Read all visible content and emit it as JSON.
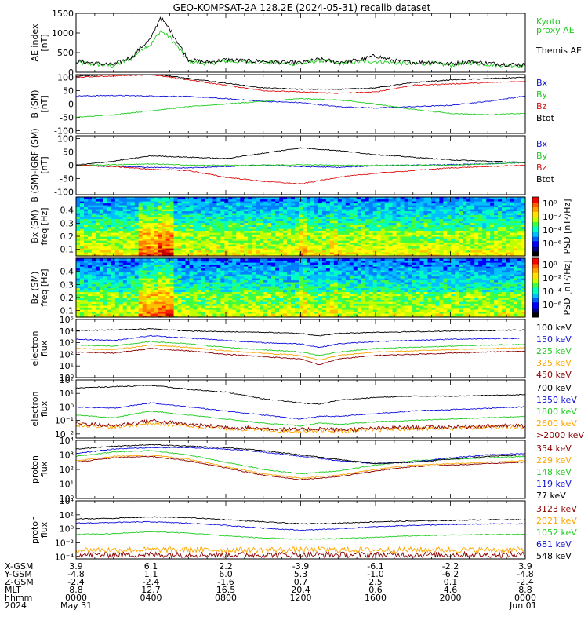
{
  "title": "GEO-KOMPSAT-2A 128.2E (2024-05-31) recalib dataset",
  "colors": {
    "black": "#000000",
    "green": "#22cc22",
    "blue": "#1010dd",
    "red": "#dd1010",
    "orange": "#ffa500",
    "darkred": "#8b0000",
    "ltgreen": "#33ee33"
  },
  "chart_data": [
    {
      "type": "line",
      "panel": "ae",
      "ylabel": [
        "AE index",
        "[nT]"
      ],
      "ylim": [
        0,
        1500
      ],
      "yticks": [
        "0",
        "500",
        "1000",
        "1500"
      ],
      "x_hours": [
        0,
        1,
        2,
        3,
        3.5,
        4,
        4.5,
        5,
        6,
        7,
        8,
        9,
        10,
        11,
        12,
        13,
        14,
        15,
        16,
        17,
        18,
        19,
        20,
        21,
        22,
        23,
        24
      ],
      "series": [
        {
          "name": "Kyoto proxy AE",
          "label": [
            "Kyoto",
            "proxy AE"
          ],
          "color": "green",
          "values": [
            250,
            200,
            160,
            350,
            600,
            700,
            1050,
            900,
            280,
            220,
            280,
            260,
            250,
            230,
            210,
            300,
            220,
            260,
            280,
            240,
            210,
            230,
            180,
            240,
            200,
            180,
            170
          ]
        },
        {
          "name": "Themis AE",
          "label": [
            "Themis AE"
          ],
          "color": "black",
          "values": [
            280,
            230,
            190,
            400,
            650,
            850,
            1400,
            1100,
            320,
            250,
            320,
            290,
            280,
            250,
            240,
            330,
            260,
            300,
            420,
            290,
            250,
            260,
            210,
            270,
            230,
            200,
            190
          ]
        }
      ]
    },
    {
      "type": "line",
      "panel": "bsm",
      "ylabel": [
        "B (SM)",
        "[nT]"
      ],
      "ylim": [
        -110,
        110
      ],
      "yticks": [
        "-100",
        "-50",
        "0",
        "50",
        "100"
      ],
      "x_hours": [
        0,
        2,
        4,
        6,
        8,
        10,
        12,
        14,
        16,
        18,
        20,
        22,
        24
      ],
      "series": [
        {
          "name": "Bx",
          "color": "blue",
          "values": [
            30,
            32,
            30,
            28,
            20,
            10,
            5,
            -10,
            -15,
            -10,
            -5,
            10,
            30
          ]
        },
        {
          "name": "By",
          "color": "green",
          "values": [
            -50,
            -40,
            -25,
            -10,
            0,
            10,
            20,
            15,
            0,
            -20,
            -35,
            -40,
            -35
          ]
        },
        {
          "name": "Bz",
          "color": "red",
          "values": [
            100,
            105,
            110,
            90,
            70,
            50,
            45,
            40,
            45,
            70,
            75,
            80,
            85
          ]
        },
        {
          "name": "Btot",
          "color": "black",
          "values": [
            105,
            110,
            115,
            95,
            78,
            60,
            55,
            55,
            60,
            80,
            90,
            95,
            100
          ]
        }
      ]
    },
    {
      "type": "line",
      "panel": "bdiff",
      "ylabel": [
        "B (SM)-IGRF (SM)",
        "[nT]"
      ],
      "ylim": [
        -110,
        110
      ],
      "yticks": [
        "-100",
        "-50",
        "0",
        "50",
        "100"
      ],
      "x_hours": [
        0,
        2,
        4,
        6,
        8,
        10,
        12,
        14,
        16,
        18,
        20,
        22,
        24
      ],
      "series": [
        {
          "name": "Bx",
          "color": "blue",
          "values": [
            0,
            -5,
            -8,
            -10,
            -5,
            0,
            -5,
            -8,
            -2,
            0,
            2,
            5,
            10
          ]
        },
        {
          "name": "By",
          "color": "green",
          "values": [
            0,
            2,
            5,
            0,
            0,
            0,
            2,
            0,
            0,
            0,
            0,
            5,
            10
          ]
        },
        {
          "name": "Bz",
          "color": "red",
          "values": [
            0,
            -5,
            -15,
            -20,
            -45,
            -60,
            -70,
            -45,
            -30,
            -20,
            -10,
            -5,
            0
          ]
        },
        {
          "name": "Btot",
          "color": "black",
          "values": [
            0,
            15,
            35,
            30,
            25,
            45,
            65,
            55,
            40,
            30,
            20,
            15,
            10
          ]
        }
      ]
    },
    {
      "type": "heatmap",
      "panel": "bxspec",
      "ylabel": [
        "Bx (SM)",
        "freq [Hz]"
      ],
      "ylim": [
        0.05,
        0.5
      ],
      "yticks": [
        "0.1",
        "0.2",
        "0.3",
        "0.4"
      ],
      "colorbar": {
        "label": "PSD [nT²/Hz]",
        "ticks": [
          "10⁰",
          "10⁻²",
          "10⁻⁴",
          "10⁻⁶"
        ]
      }
    },
    {
      "type": "heatmap",
      "panel": "bzspec",
      "ylabel": [
        "Bz (SM)",
        "freq [Hz]"
      ],
      "ylim": [
        0.05,
        0.5
      ],
      "yticks": [
        "0.1",
        "0.2",
        "0.3",
        "0.4"
      ],
      "colorbar": {
        "label": "PSD [nT²/Hz]",
        "ticks": [
          "10⁰",
          "10⁻²",
          "10⁻⁴",
          "10⁻⁶"
        ]
      }
    },
    {
      "type": "line",
      "panel": "elec1",
      "ylabel": [
        "electron",
        "flux"
      ],
      "log": true,
      "ylim": [
        0,
        5
      ],
      "yticks": [
        "10⁰",
        "10¹",
        "10²",
        "10³",
        "10⁴",
        "10⁵"
      ],
      "x_hours": [
        0,
        2,
        4,
        6,
        8,
        10,
        12,
        13,
        14,
        16,
        18,
        20,
        22,
        24
      ],
      "series": [
        {
          "name": "100 keV",
          "color": "black",
          "values": [
            4.05,
            4.1,
            4.2,
            4.0,
            3.95,
            3.9,
            3.8,
            3.6,
            3.8,
            3.9,
            3.95,
            4.0,
            4.05,
            4.1
          ]
        },
        {
          "name": "150 keV",
          "color": "blue",
          "values": [
            3.3,
            3.2,
            3.6,
            3.4,
            3.2,
            3.0,
            2.9,
            2.6,
            2.9,
            3.1,
            3.2,
            3.3,
            3.35,
            3.4
          ]
        },
        {
          "name": "225 keV",
          "color": "green",
          "values": [
            2.8,
            2.7,
            3.1,
            2.9,
            2.6,
            2.4,
            2.2,
            1.9,
            2.2,
            2.5,
            2.6,
            2.7,
            2.8,
            2.85
          ]
        },
        {
          "name": "325 keV",
          "color": "orange",
          "values": [
            2.5,
            2.4,
            2.8,
            2.6,
            2.3,
            2.1,
            1.9,
            1.5,
            1.9,
            2.2,
            2.3,
            2.4,
            2.5,
            2.55
          ]
        },
        {
          "name": "450 keV",
          "color": "darkred",
          "values": [
            2.2,
            2.1,
            2.5,
            2.3,
            2.0,
            1.8,
            1.6,
            1.1,
            1.6,
            1.9,
            2.0,
            2.1,
            2.2,
            2.25
          ]
        }
      ]
    },
    {
      "type": "line",
      "panel": "elec2",
      "ylabel": [
        "electron",
        "flux"
      ],
      "log": true,
      "ylim": [
        -2.3,
        2
      ],
      "yticks": [
        "10⁻²",
        "10⁻¹",
        "10⁰",
        "10¹",
        "10²"
      ],
      "x_hours": [
        0,
        2,
        4,
        6,
        8,
        10,
        12,
        13,
        14,
        16,
        18,
        20,
        22,
        24
      ],
      "series": [
        {
          "name": "700 keV",
          "color": "black",
          "values": [
            1.4,
            1.5,
            1.6,
            1.3,
            1.1,
            0.6,
            0.3,
            0.2,
            0.5,
            0.7,
            0.8,
            0.8,
            0.85,
            0.9
          ]
        },
        {
          "name": "1350 keV",
          "color": "blue",
          "values": [
            0.0,
            -0.1,
            0.3,
            0.0,
            -0.3,
            -0.6,
            -0.9,
            -0.7,
            -0.7,
            -0.5,
            -0.3,
            -0.2,
            -0.1,
            0.0
          ]
        },
        {
          "name": "1800 keV",
          "color": "green",
          "values": [
            -0.6,
            -0.8,
            -0.3,
            -0.6,
            -0.9,
            -1.2,
            -1.4,
            -1.2,
            -1.3,
            -1.1,
            -1.0,
            -0.9,
            -0.8,
            -0.7
          ]
        },
        {
          "name": "2600 keV",
          "color": "orange",
          "values": [
            -1.3,
            -1.5,
            -1.2,
            -1.4,
            -1.6,
            -1.7,
            -1.8,
            -1.7,
            -1.8,
            -1.7,
            -1.6,
            -1.6,
            -1.5,
            -1.5
          ]
        },
        {
          "name": ">2000 keV",
          "color": "darkred",
          "values": [
            -1.2,
            -1.4,
            -1.0,
            -1.3,
            -1.5,
            -1.6,
            -1.7,
            -1.6,
            -1.7,
            -1.6,
            -1.5,
            -1.5,
            -1.4,
            -1.4
          ]
        }
      ]
    },
    {
      "type": "line",
      "panel": "prot1",
      "ylabel": [
        "proton",
        "flux"
      ],
      "log": true,
      "ylim": [
        0,
        4
      ],
      "yticks": [
        "10⁰",
        "10¹",
        "10²",
        "10³",
        "10⁴"
      ],
      "x_hours": [
        0,
        2,
        4,
        6,
        8,
        10,
        12,
        14,
        16,
        18,
        20,
        22,
        24
      ],
      "series": [
        {
          "name": "354 keV",
          "color": "darkred",
          "values": [
            2.5,
            2.8,
            2.9,
            2.6,
            2.1,
            1.6,
            1.3,
            1.5,
            1.9,
            2.2,
            2.3,
            2.4,
            2.5
          ]
        },
        {
          "name": "229 keV",
          "color": "orange",
          "values": [
            2.6,
            2.9,
            3.0,
            2.7,
            2.2,
            1.7,
            1.4,
            1.6,
            2.0,
            2.3,
            2.4,
            2.5,
            2.6
          ]
        },
        {
          "name": "148 keV",
          "color": "green",
          "values": [
            2.9,
            3.2,
            3.3,
            3.0,
            2.5,
            2.0,
            1.7,
            1.9,
            2.3,
            2.6,
            2.7,
            2.8,
            2.9
          ]
        },
        {
          "name": "119 keV",
          "color": "blue",
          "values": [
            3.1,
            3.4,
            3.5,
            3.5,
            3.4,
            3.2,
            2.9,
            2.6,
            2.4,
            2.5,
            2.8,
            3.0,
            3.1
          ]
        },
        {
          "name": "77 keV",
          "color": "black",
          "values": [
            3.4,
            3.6,
            3.7,
            3.6,
            3.5,
            3.3,
            3.0,
            2.7,
            2.4,
            2.5,
            2.7,
            2.9,
            3.0
          ]
        }
      ]
    },
    {
      "type": "line",
      "panel": "prot2",
      "ylabel": [
        "proton",
        "flux"
      ],
      "log": true,
      "ylim": [
        -4.3,
        4
      ],
      "yticks": [
        "10⁻⁴",
        "10⁻²",
        "10⁰",
        "10²",
        "10⁴"
      ],
      "x_hours": [
        0,
        2,
        4,
        6,
        8,
        10,
        12,
        14,
        16,
        18,
        20,
        22,
        24
      ],
      "series": [
        {
          "name": "3123 keV",
          "color": "darkred",
          "values": [
            -3.7,
            -3.7,
            -3.7,
            -3.7,
            -3.7,
            -3.7,
            -3.7,
            -3.7,
            -3.7,
            -3.7,
            -3.7,
            -3.7,
            -3.7
          ]
        },
        {
          "name": "2021 keV",
          "color": "orange",
          "values": [
            -3.0,
            -3.0,
            -3.0,
            -3.0,
            -3.0,
            -3.0,
            -3.0,
            -3.0,
            -3.0,
            -3.0,
            -3.0,
            -3.0,
            -3.0
          ]
        },
        {
          "name": "1052 keV",
          "color": "green",
          "values": [
            -0.8,
            -0.7,
            -0.4,
            -0.6,
            -1.0,
            -1.3,
            -1.5,
            -1.4,
            -1.2,
            -1.0,
            -0.9,
            -0.8,
            -0.8
          ]
        },
        {
          "name": "681 keV",
          "color": "blue",
          "values": [
            0.8,
            0.9,
            1.0,
            0.8,
            0.5,
            0.1,
            -0.2,
            0.0,
            0.3,
            0.5,
            0.6,
            0.7,
            0.7
          ]
        },
        {
          "name": "548 keV",
          "color": "black",
          "values": [
            1.4,
            1.5,
            1.7,
            1.6,
            1.3,
            1.0,
            0.7,
            0.8,
            1.0,
            1.1,
            1.2,
            1.3,
            1.3
          ]
        }
      ]
    }
  ],
  "footer": {
    "row_labels": [
      "X-GSM",
      "Y-GSM",
      "Z-GSM",
      "MLT",
      "hhmm",
      "2024"
    ],
    "columns": [
      [
        "3.9",
        "-4.8",
        "-2.4",
        "8.8",
        "0000",
        "May 31"
      ],
      [
        "6.1",
        "1.1",
        "-2.4",
        "12.7",
        "0400",
        ""
      ],
      [
        "2.2",
        "6.0",
        "-1.6",
        "16.5",
        "0800",
        ""
      ],
      [
        "-3.9",
        "5.3",
        "0.7",
        "20.4",
        "1200",
        ""
      ],
      [
        "-6.1",
        "-1.0",
        "2.5",
        "0.6",
        "1600",
        ""
      ],
      [
        "-2.2",
        "-6.2",
        "0.1",
        "4.6",
        "2000",
        ""
      ],
      [
        "3.9",
        "-4.8",
        "-2.4",
        "8.8",
        "0000",
        "Jun 01"
      ]
    ]
  }
}
